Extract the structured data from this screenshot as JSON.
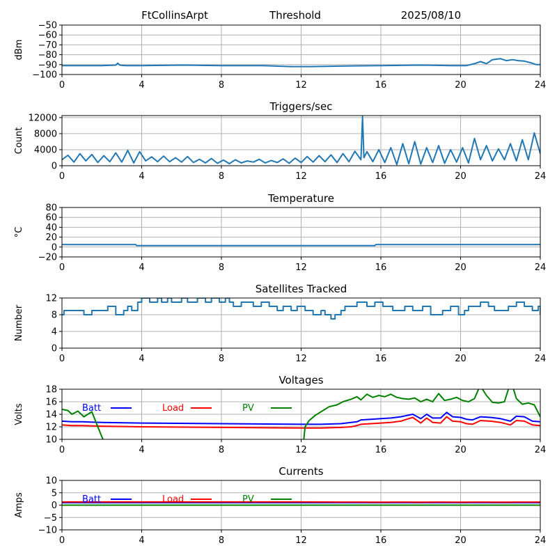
{
  "header": {
    "station": "FtCollinsArpt",
    "mode": "Threshold",
    "date": "2025/08/10"
  },
  "chart_data": [
    {
      "id": "threshold",
      "type": "line",
      "title": "",
      "xlabel": "",
      "ylabel": "dBm",
      "xlim": [
        0,
        24
      ],
      "ylim": [
        -100,
        -50
      ],
      "xticks": [
        0,
        4,
        8,
        12,
        16,
        20,
        24
      ],
      "yticks": [
        -100,
        -90,
        -80,
        -70,
        -60,
        -50
      ],
      "grid": true,
      "series": [
        {
          "color": "#1f77b4",
          "x": [
            0,
            2,
            2.7,
            2.8,
            2.9,
            3.2,
            4,
            6,
            8,
            10,
            11.5,
            12.5,
            14,
            16,
            18,
            19.5,
            20.3,
            20.7,
            21.0,
            21.3,
            21.6,
            22.0,
            22.3,
            22.6,
            22.9,
            23.2,
            23.5,
            23.8,
            24
          ],
          "y": [
            -91,
            -91,
            -90.5,
            -88.5,
            -90.5,
            -91,
            -91,
            -90.5,
            -91,
            -91,
            -92,
            -92,
            -91.5,
            -91,
            -90.5,
            -91,
            -91,
            -89,
            -87,
            -89,
            -85,
            -84,
            -86,
            -85,
            -86,
            -86.5,
            -88,
            -90,
            -90
          ]
        }
      ]
    },
    {
      "id": "triggers",
      "type": "line",
      "title": "Triggers/sec",
      "xlabel": "",
      "ylabel": "Count",
      "xlim": [
        0,
        24
      ],
      "ylim": [
        0,
        12500
      ],
      "xticks": [
        0,
        4,
        8,
        12,
        16,
        20,
        24
      ],
      "yticks": [
        0,
        4000,
        8000,
        12000
      ],
      "grid": true,
      "series": [
        {
          "color": "#1f77b4",
          "x": [
            0,
            0.3,
            0.6,
            0.9,
            1.2,
            1.5,
            1.8,
            2.1,
            2.4,
            2.7,
            3.0,
            3.3,
            3.6,
            3.9,
            4.2,
            4.5,
            4.8,
            5.1,
            5.4,
            5.7,
            6.0,
            6.3,
            6.6,
            6.9,
            7.2,
            7.5,
            7.8,
            8.1,
            8.4,
            8.7,
            9.0,
            9.3,
            9.6,
            9.9,
            10.2,
            10.5,
            10.8,
            11.1,
            11.4,
            11.7,
            12.0,
            12.3,
            12.6,
            12.9,
            13.2,
            13.5,
            13.8,
            14.1,
            14.4,
            14.7,
            15.0,
            15.08,
            15.15,
            15.3,
            15.6,
            15.9,
            16.2,
            16.5,
            16.8,
            17.1,
            17.4,
            17.7,
            18.0,
            18.3,
            18.6,
            18.9,
            19.2,
            19.5,
            19.8,
            20.1,
            20.4,
            20.7,
            21.0,
            21.3,
            21.6,
            21.9,
            22.2,
            22.5,
            22.8,
            23.1,
            23.4,
            23.7,
            24
          ],
          "y": [
            1500,
            2600,
            900,
            3000,
            1200,
            2800,
            800,
            2500,
            1000,
            3200,
            900,
            3800,
            700,
            3500,
            1200,
            2200,
            1000,
            2400,
            1000,
            2000,
            900,
            2300,
            800,
            1600,
            700,
            1800,
            600,
            1400,
            500,
            1500,
            700,
            1200,
            900,
            1600,
            700,
            1300,
            800,
            1700,
            600,
            1900,
            800,
            2300,
            900,
            2500,
            1000,
            2700,
            800,
            3000,
            1000,
            3600,
            1500,
            12300,
            2000,
            3500,
            1000,
            4000,
            800,
            4500,
            300,
            5500,
            500,
            6000,
            400,
            4500,
            800,
            5000,
            600,
            4000,
            900,
            4500,
            700,
            6800,
            1500,
            5000,
            1200,
            4200,
            1500,
            5500,
            1200,
            6500,
            1500,
            8200,
            3000
          ]
        }
      ]
    },
    {
      "id": "temperature",
      "type": "line",
      "title": "Temperature",
      "xlabel": "",
      "ylabel": "°C",
      "xlim": [
        0,
        24
      ],
      "ylim": [
        -20,
        80
      ],
      "xticks": [
        0,
        4,
        8,
        12,
        16,
        20,
        24
      ],
      "yticks": [
        -20,
        0,
        20,
        40,
        60,
        80
      ],
      "grid": true,
      "series": [
        {
          "color": "#1f77b4",
          "x": [
            0,
            3.7,
            3.75,
            15.7,
            15.75,
            24
          ],
          "y": [
            5,
            5,
            3,
            3,
            5,
            5
          ]
        }
      ]
    },
    {
      "id": "satellites",
      "type": "line",
      "title": "Satellites Tracked",
      "xlabel": "",
      "ylabel": "Number",
      "xlim": [
        0,
        24
      ],
      "ylim": [
        0,
        12
      ],
      "xticks": [
        0,
        4,
        8,
        12,
        16,
        20,
        24
      ],
      "yticks": [
        0,
        4,
        8,
        12
      ],
      "grid": true,
      "series": [
        {
          "color": "#1f77b4",
          "step": true,
          "x": [
            0,
            0.1,
            1.1,
            1.5,
            2.0,
            2.3,
            2.7,
            3.1,
            3.3,
            3.5,
            3.8,
            4.0,
            4.4,
            4.8,
            5.0,
            5.3,
            5.5,
            6.0,
            6.3,
            6.8,
            7.2,
            7.5,
            7.9,
            8.2,
            8.4,
            8.6,
            9.0,
            9.6,
            10.0,
            10.4,
            10.8,
            11.1,
            11.5,
            11.8,
            12.2,
            12.6,
            13.0,
            13.2,
            13.5,
            13.7,
            14.0,
            14.2,
            14.8,
            15.3,
            15.7,
            16.1,
            16.6,
            17.2,
            17.6,
            18.1,
            18.5,
            19.1,
            19.5,
            19.9,
            20.2,
            20.4,
            21.0,
            21.4,
            21.7,
            22.4,
            22.8,
            23.2,
            23.6,
            23.9,
            24
          ],
          "y": [
            8,
            9,
            8,
            9,
            9,
            10,
            8,
            9,
            10,
            9,
            11,
            12,
            11,
            12,
            11,
            12,
            11,
            12,
            11,
            12,
            11,
            12,
            11,
            12,
            11,
            10,
            11,
            10,
            11,
            10,
            9,
            10,
            9,
            10,
            9,
            8,
            9,
            8,
            7,
            8,
            9,
            10,
            11,
            10,
            11,
            10,
            9,
            10,
            9,
            10,
            8,
            9,
            10,
            8,
            9,
            10,
            11,
            10,
            9,
            10,
            11,
            10,
            9,
            10,
            8
          ]
        }
      ]
    },
    {
      "id": "voltages",
      "type": "line",
      "title": "Voltages",
      "xlabel": "",
      "ylabel": "Volts",
      "xlim": [
        0,
        24
      ],
      "ylim": [
        10,
        18
      ],
      "xticks": [
        0,
        4,
        8,
        12,
        16,
        20,
        24
      ],
      "yticks": [
        10,
        12,
        14,
        16,
        18
      ],
      "grid": true,
      "legend": "top-left, horizontal",
      "series": [
        {
          "name": "Batt",
          "color": "#0000ff",
          "x": [
            0,
            0.5,
            1,
            2,
            4,
            8,
            12,
            13,
            14,
            14.5,
            14.8,
            15,
            15.5,
            16,
            16.5,
            17,
            17.3,
            17.6,
            18,
            18.3,
            18.6,
            19,
            19.3,
            19.6,
            20,
            20.3,
            20.6,
            21,
            21.5,
            22,
            22.5,
            22.8,
            23.2,
            23.6,
            24
          ],
          "y": [
            12.9,
            12.8,
            12.8,
            12.7,
            12.6,
            12.5,
            12.4,
            12.4,
            12.5,
            12.7,
            12.8,
            13.1,
            13.2,
            13.3,
            13.4,
            13.6,
            13.8,
            14.0,
            13.3,
            14.0,
            13.4,
            13.4,
            14.3,
            13.6,
            13.5,
            13.2,
            13.1,
            13.6,
            13.5,
            13.3,
            12.9,
            13.7,
            13.6,
            12.9,
            12.8
          ]
        },
        {
          "name": "Load",
          "color": "#ff0000",
          "x": [
            0,
            0.5,
            1,
            2,
            4,
            8,
            12,
            13,
            14,
            14.5,
            14.8,
            15,
            15.5,
            16,
            16.5,
            17,
            17.3,
            17.6,
            18,
            18.3,
            18.6,
            19,
            19.3,
            19.6,
            20,
            20.3,
            20.6,
            21,
            21.5,
            22,
            22.5,
            22.8,
            23.2,
            23.6,
            24
          ],
          "y": [
            12.3,
            12.2,
            12.2,
            12.1,
            12.0,
            11.9,
            11.8,
            11.8,
            11.9,
            12.0,
            12.2,
            12.4,
            12.5,
            12.6,
            12.7,
            12.9,
            13.2,
            13.5,
            12.6,
            13.4,
            12.7,
            12.6,
            13.6,
            12.9,
            12.8,
            12.5,
            12.4,
            13.0,
            12.9,
            12.7,
            12.3,
            13.0,
            12.9,
            12.3,
            12.2
          ]
        },
        {
          "name": "PV",
          "color": "#008000",
          "x": [
            0,
            0.3,
            0.5,
            0.8,
            1.1,
            1.5,
            1.8,
            2.0,
            2.2,
            12.1,
            12.2,
            12.4,
            12.7,
            13.0,
            13.4,
            13.8,
            14.1,
            14.5,
            14.8,
            15.0,
            15.3,
            15.6,
            15.9,
            16.2,
            16.5,
            16.8,
            17.1,
            17.4,
            17.7,
            18.0,
            18.3,
            18.6,
            18.9,
            19.2,
            19.5,
            19.8,
            20.1,
            20.4,
            20.7,
            20.9,
            21.0,
            21.3,
            21.6,
            21.9,
            22.2,
            22.4,
            22.6,
            22.8,
            23.1,
            23.4,
            23.7,
            24
          ],
          "y": [
            14.8,
            14.6,
            14.0,
            14.5,
            13.6,
            14.4,
            12.0,
            10.4,
            9.0,
            9.0,
            12.0,
            13.0,
            13.8,
            14.4,
            15.2,
            15.5,
            16.0,
            16.4,
            16.8,
            16.3,
            17.2,
            16.7,
            17.0,
            16.8,
            17.2,
            16.7,
            16.5,
            16.4,
            16.6,
            16.0,
            16.4,
            16.0,
            17.3,
            16.2,
            16.4,
            16.7,
            16.2,
            16.0,
            16.5,
            18.0,
            18.5,
            17.0,
            15.9,
            15.8,
            16.0,
            18.0,
            18.6,
            16.5,
            15.6,
            15.8,
            15.5,
            13.6
          ]
        }
      ]
    },
    {
      "id": "currents",
      "type": "line",
      "title": "Currents",
      "xlabel": "",
      "ylabel": "Amps",
      "xlim": [
        0,
        24
      ],
      "ylim": [
        -10,
        10
      ],
      "xticks": [
        0,
        4,
        8,
        12,
        16,
        20,
        24
      ],
      "yticks": [
        -10,
        -5,
        0,
        5,
        10
      ],
      "grid": true,
      "legend": "top-left, horizontal",
      "series": [
        {
          "name": "Batt",
          "color": "#0000ff",
          "x": [
            0,
            4,
            8,
            12,
            16,
            20,
            24
          ],
          "y": [
            1.0,
            1.0,
            1.0,
            1.0,
            1.0,
            1.0,
            1.0
          ]
        },
        {
          "name": "Load",
          "color": "#ff0000",
          "x": [
            0,
            4,
            8,
            12,
            14,
            16,
            17,
            18,
            19,
            20,
            21,
            22,
            23,
            24
          ],
          "y": [
            1.3,
            1.3,
            1.3,
            1.3,
            1.25,
            1.2,
            1.25,
            1.2,
            1.25,
            1.2,
            1.25,
            1.2,
            1.25,
            1.25
          ]
        },
        {
          "name": "PV",
          "color": "#008000",
          "x": [
            0,
            4,
            8,
            12,
            16,
            20,
            24
          ],
          "y": [
            0,
            0,
            0,
            0,
            0,
            0,
            0
          ]
        }
      ]
    }
  ]
}
